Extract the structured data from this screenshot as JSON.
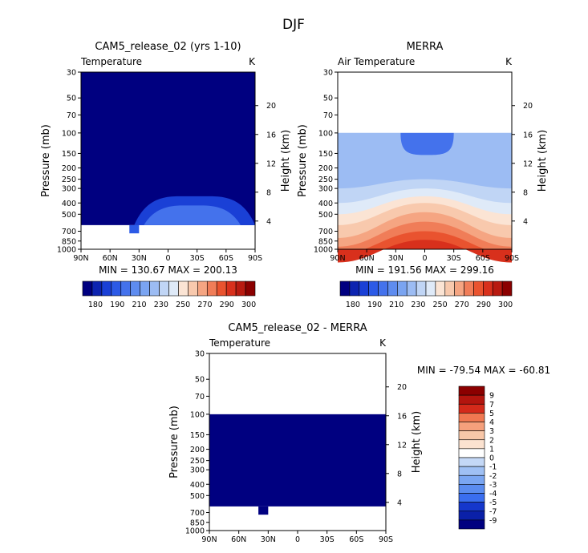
{
  "figure_title": "DJF",
  "colors": {
    "blue_scale": [
      "#000080",
      "#0a20a8",
      "#1537cc",
      "#2352e6",
      "#3a6ef0",
      "#5a8cf0",
      "#7aa6f2",
      "#9fc0f4",
      "#c4d8f6",
      "#e0ebf8",
      "#ffffff",
      "#fbe2d0",
      "#f8c7a8",
      "#f5a07c",
      "#f07851",
      "#e94b2e",
      "#d42a1a",
      "#b3150e",
      "#8b0000"
    ],
    "temp_scale": [
      "#000080",
      "#0d24b0",
      "#1a40d6",
      "#2c5ae6",
      "#4472ec",
      "#5e8cef",
      "#7aa4f1",
      "#9cbcf3",
      "#c0d5f5",
      "#dfeaf8",
      "#fbe4d4",
      "#f8c9ad",
      "#f5a582",
      "#f07d58",
      "#e9532f",
      "#d8301c",
      "#b81a10",
      "#8b0000"
    ]
  },
  "chart_data": [
    {
      "type": "heatmap",
      "id": "panel1",
      "title": "CAM5_release_02 (yrs 1-10)",
      "left_label": "Temperature",
      "unit": "K",
      "ylabel": "Pressure (mb)",
      "ylabel_right": "Height (km)",
      "x_tick_labels": [
        "90N",
        "60N",
        "30N",
        "0",
        "30S",
        "60S",
        "90S"
      ],
      "x_ticks": [
        90,
        60,
        30,
        0,
        -30,
        -60,
        -90
      ],
      "y_ticks": [
        30,
        50,
        70,
        100,
        150,
        200,
        250,
        300,
        400,
        500,
        700,
        850,
        1000
      ],
      "y_range_mb": [
        1000,
        30
      ],
      "height_ticks_km": [
        4,
        8,
        12,
        16,
        20
      ],
      "stats": "MIN = 130.67   MAX = 200.13",
      "colorbar_labels": [
        "180",
        "190",
        "210",
        "230",
        "250",
        "270",
        "290",
        "300"
      ],
      "regions": [
        {
          "kind": "fill",
          "lat": [
            90,
            -90
          ],
          "p": [
            30,
            620
          ],
          "color_index": 0
        },
        {
          "kind": "dome",
          "lat": [
            35,
            -90
          ],
          "p_top": 350,
          "p_bottom": 620,
          "color_index": 2
        },
        {
          "kind": "dome",
          "lat": [
            25,
            -75
          ],
          "p_top": 420,
          "p_bottom": 620,
          "color_index": 4
        },
        {
          "kind": "block",
          "lat": [
            40,
            30
          ],
          "p": [
            620,
            730
          ],
          "color_index": 3
        }
      ]
    },
    {
      "type": "heatmap",
      "id": "panel2",
      "title": "MERRA",
      "left_label": "Air Temperature",
      "unit": "K",
      "ylabel": "Pressure (mb)",
      "ylabel_right": "Height (km)",
      "x_tick_labels": [
        "90N",
        "60N",
        "30N",
        "0",
        "30S",
        "60S",
        "90S"
      ],
      "x_ticks": [
        90,
        60,
        30,
        0,
        -30,
        -60,
        -90
      ],
      "y_ticks": [
        30,
        50,
        70,
        100,
        150,
        200,
        250,
        300,
        400,
        500,
        700,
        850,
        1000
      ],
      "y_range_mb": [
        1000,
        30
      ],
      "height_ticks_km": [
        4,
        8,
        12,
        16,
        20
      ],
      "stats": "MIN = 191.56   MAX = 299.16",
      "colorbar_labels": [
        "180",
        "190",
        "210",
        "230",
        "250",
        "270",
        "290",
        "300"
      ],
      "data_top_mb": 100,
      "layers": [
        {
          "p_top": 100,
          "p_edge": 100,
          "color_index": 6
        },
        {
          "p_top": 100,
          "p_edge": 100,
          "color_index": 7
        },
        {
          "p_top": 250,
          "p_edge": 300,
          "color_index": 8
        },
        {
          "p_top": 300,
          "p_edge": 400,
          "color_index": 9
        },
        {
          "p_top": 350,
          "p_edge": 500,
          "color_index": 10
        },
        {
          "p_top": 400,
          "p_edge": 620,
          "color_index": 11
        },
        {
          "p_top": 480,
          "p_edge": 800,
          "color_index": 12
        },
        {
          "p_top": 580,
          "p_edge": 950,
          "color_index": 13
        },
        {
          "p_top": 700,
          "p_edge": 1100,
          "color_index": 14
        },
        {
          "p_top": 830,
          "p_edge": 1300,
          "color_index": 15
        }
      ],
      "cold_core": {
        "lat": [
          25,
          -30
        ],
        "p_bottom": 150,
        "color_index": 4
      }
    },
    {
      "type": "heatmap",
      "id": "panel3",
      "title": "CAM5_release_02 - MERRA",
      "left_label": "Temperature",
      "unit": "K",
      "ylabel": "Pressure (mb)",
      "ylabel_right": "Height (km)",
      "x_tick_labels": [
        "90N",
        "60N",
        "30N",
        "0",
        "30S",
        "60S",
        "90S"
      ],
      "x_ticks": [
        90,
        60,
        30,
        0,
        -30,
        -60,
        -90
      ],
      "y_ticks": [
        30,
        50,
        70,
        100,
        150,
        200,
        250,
        300,
        400,
        500,
        700,
        850,
        1000
      ],
      "y_range_mb": [
        1000,
        30
      ],
      "height_ticks_km": [
        4,
        8,
        12,
        16,
        20
      ],
      "stats": "MIN = -79.54   MAX = -60.81",
      "colorbar_labels": [
        "9",
        "7",
        "5",
        "4",
        "3",
        "2",
        "1",
        "0",
        "-1",
        "-2",
        "-3",
        "-4",
        "-5",
        "-7",
        "-9"
      ],
      "regions": [
        {
          "kind": "fill",
          "lat": [
            90,
            -90
          ],
          "p": [
            100,
            620
          ],
          "color_index": 0
        },
        {
          "kind": "block",
          "lat": [
            40,
            30
          ],
          "p": [
            620,
            730
          ],
          "color_index": 0
        }
      ]
    }
  ]
}
